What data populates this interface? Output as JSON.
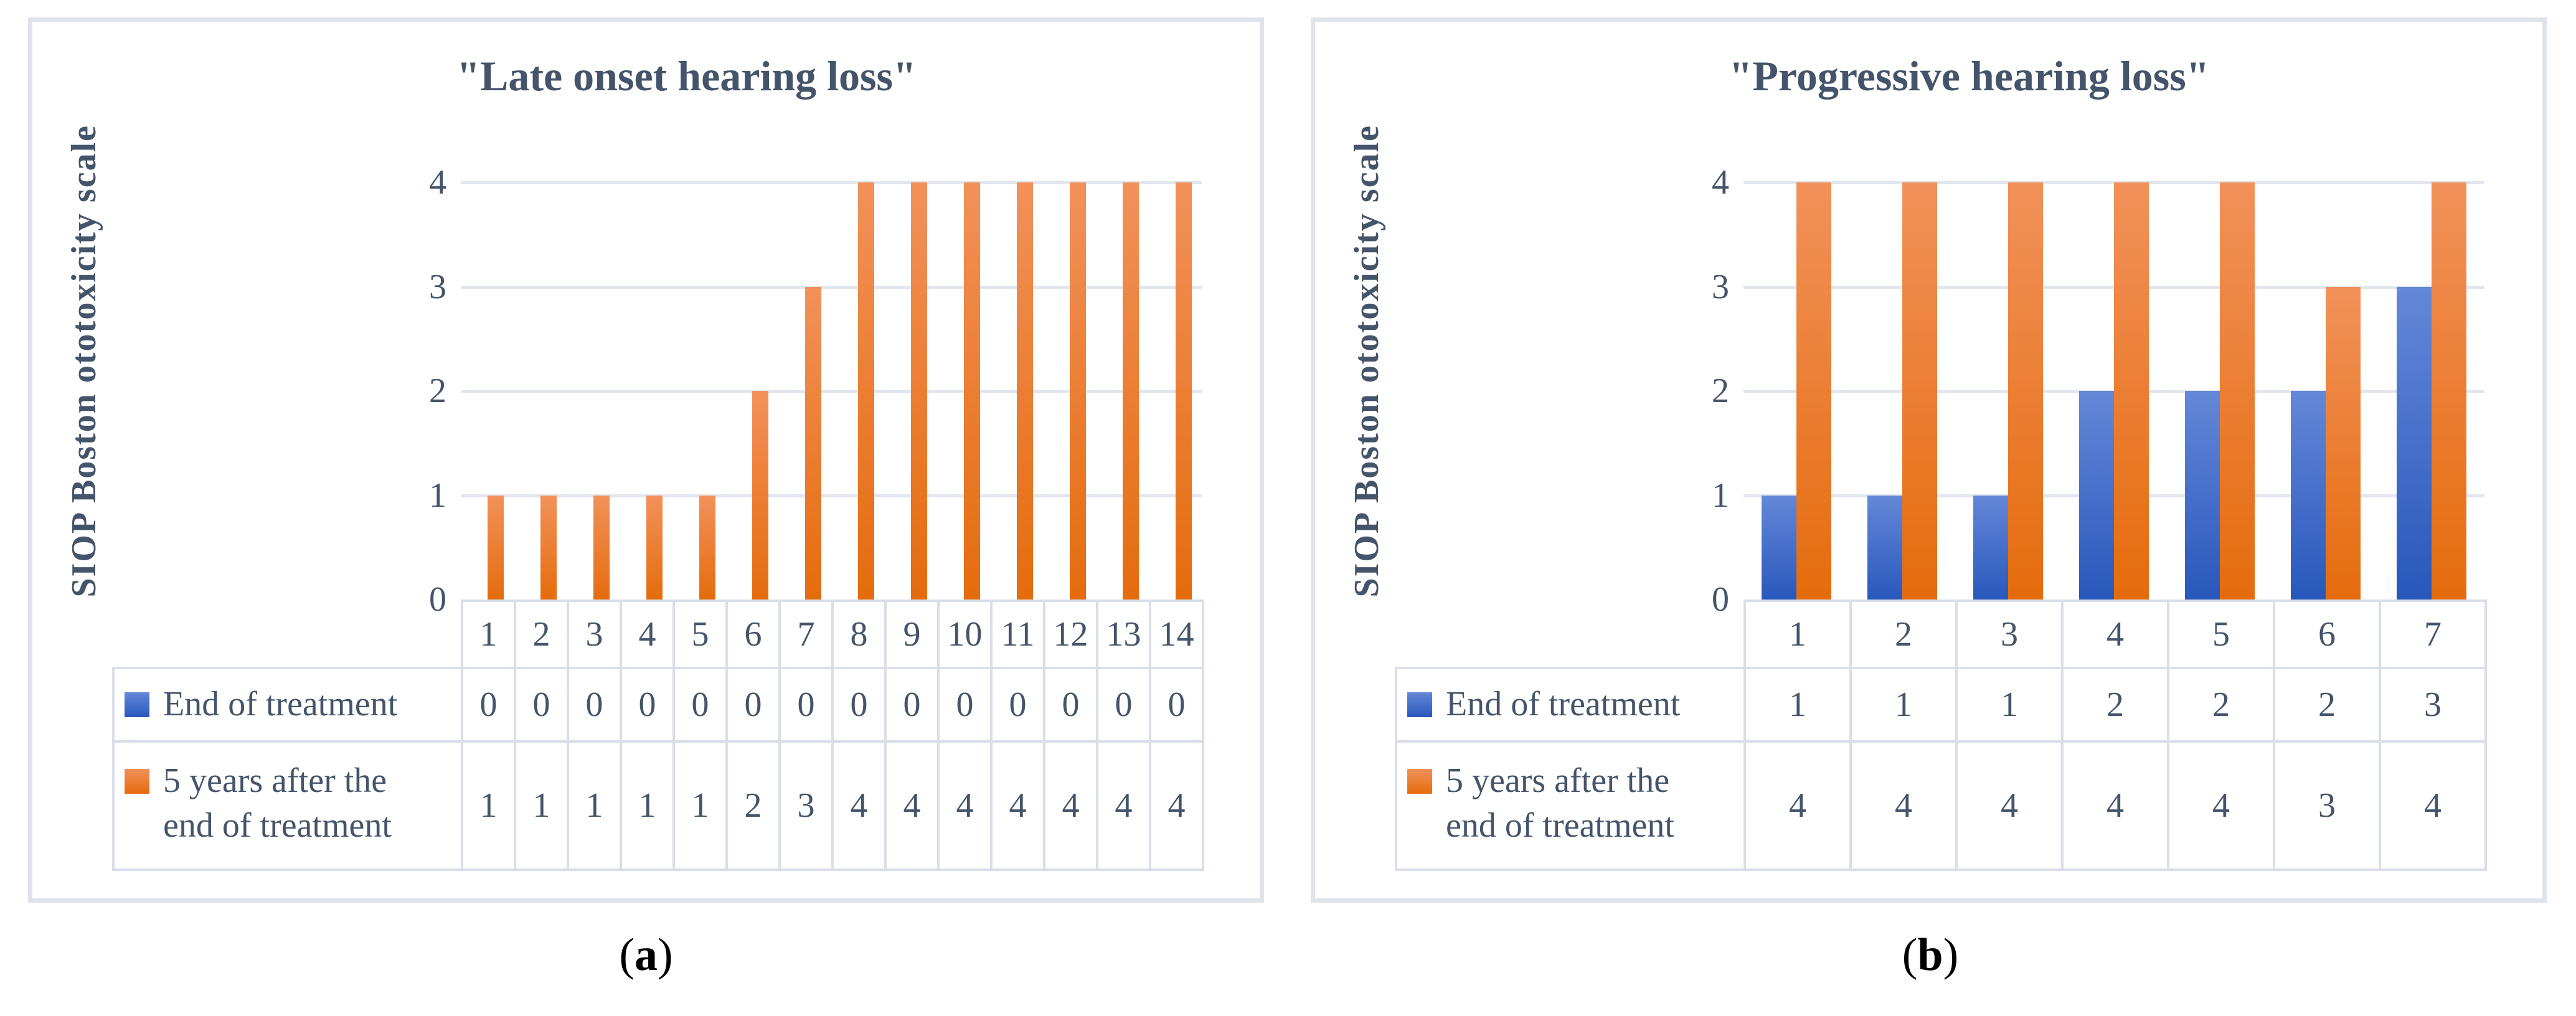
{
  "colors": {
    "text": "#44546A",
    "grid": "#E2E6EE",
    "table_border": "#D9DEE9",
    "panel_border": "#DFE3EC",
    "blue_top": "#6488D8",
    "blue_bottom": "#2857BC",
    "orange_top": "#F2915A",
    "orange_bottom": "#E56C0D",
    "caption": "#000000"
  },
  "figure": {
    "captions": [
      {
        "pre": "(",
        "letter": "a",
        "post": ")"
      },
      {
        "pre": "(",
        "letter": "b",
        "post": ")"
      }
    ]
  },
  "chart_data": [
    {
      "type": "bar",
      "title": "\"Late onset hearing loss\"",
      "ylabel": "SIOP Boston ototoxicity scale",
      "xlabel": "",
      "ylim": [
        0,
        4
      ],
      "yticks": [
        4,
        3,
        2,
        1,
        0
      ],
      "grid": true,
      "legend_position": "data-table-left",
      "categories": [
        "1",
        "2",
        "3",
        "4",
        "5",
        "6",
        "7",
        "8",
        "9",
        "10",
        "11",
        "12",
        "13",
        "14"
      ],
      "series": [
        {
          "name": "End of treatment",
          "label_lines": [
            "End of treatment"
          ],
          "color": "blue",
          "values": [
            0,
            0,
            0,
            0,
            0,
            0,
            0,
            0,
            0,
            0,
            0,
            0,
            0,
            0
          ]
        },
        {
          "name": "5 years after the end of treatment",
          "label_lines": [
            "5 years after the",
            "end of treatment"
          ],
          "color": "orange",
          "values": [
            1,
            1,
            1,
            1,
            1,
            2,
            3,
            4,
            4,
            4,
            4,
            4,
            4,
            4
          ]
        }
      ]
    },
    {
      "type": "bar",
      "title": "\"Progressive hearing loss\"",
      "ylabel": "SIOP Boston ototoxicity scale",
      "xlabel": "",
      "ylim": [
        0,
        4
      ],
      "yticks": [
        4,
        3,
        2,
        1,
        0
      ],
      "grid": true,
      "legend_position": "data-table-left",
      "categories": [
        "1",
        "2",
        "3",
        "4",
        "5",
        "6",
        "7"
      ],
      "series": [
        {
          "name": "End of treatment",
          "label_lines": [
            "End of treatment"
          ],
          "color": "blue",
          "values": [
            1,
            1,
            1,
            2,
            2,
            2,
            3
          ]
        },
        {
          "name": "5 years after the end of treatment",
          "label_lines": [
            "5 years after the",
            "end of treatment"
          ],
          "color": "orange",
          "values": [
            4,
            4,
            4,
            4,
            4,
            3,
            4
          ]
        }
      ]
    }
  ]
}
